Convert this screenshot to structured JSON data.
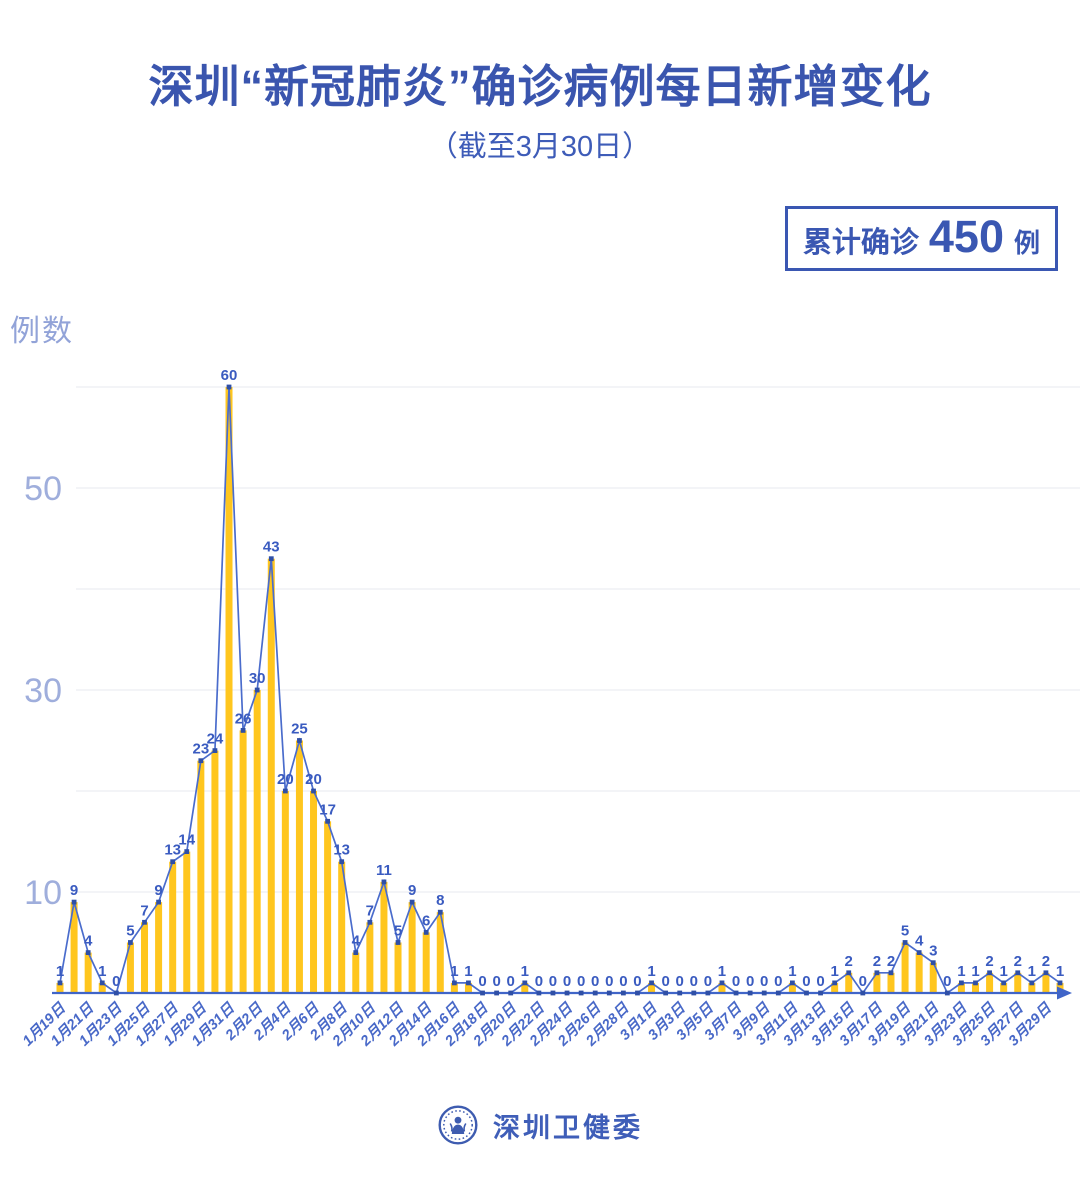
{
  "header": {
    "title": "深圳“新冠肺炎”确诊病例每日新增变化",
    "subtitle": "（截至3月30日）"
  },
  "summary_badge": {
    "prefix": "累计确诊",
    "value": "450",
    "unit": "例"
  },
  "footer": {
    "org_name": "深圳卫健委",
    "logo_icon": "shenzhen-health-commission-emblem"
  },
  "colors": {
    "title_blue": "#3A55AE",
    "badge_blue": "#3A57B2",
    "bar": "#FFC61E",
    "line": "#4A6CCC",
    "marker": "#2F4FA6",
    "value_label": "#3A5BC0",
    "date_label": "#4969C8",
    "axis": "#4065C8",
    "axis_tick": "#9FAEDC",
    "gridline": "#ECEDF2",
    "y_title": "#92A3D8"
  },
  "chart_data": {
    "type": "bar",
    "line_overlay": true,
    "point_labels_shown": true,
    "title": "深圳“新冠肺炎”确诊病例每日新增变化（截至3月30日）",
    "xlabel": "",
    "ylabel": "例数",
    "ylim": [
      0,
      60
    ],
    "grid_step": 10,
    "y_ticks": [
      10,
      30,
      50
    ],
    "x_tick_every": 2,
    "x_tick_labels": [
      "1月19日",
      "1月21日",
      "1月23日",
      "1月25日",
      "1月27日",
      "1月29日",
      "1月31日",
      "2月2日",
      "2月4日",
      "2月6日",
      "2月8日",
      "2月10日",
      "2月12日",
      "2月14日",
      "2月16日",
      "2月18日",
      "2月20日",
      "2月22日",
      "2月24日",
      "2月26日",
      "2月28日",
      "3月1日",
      "3月3日",
      "3月5日",
      "3月7日",
      "3月9日",
      "3月11日",
      "3月13日",
      "3月15日",
      "3月17日",
      "3月19日",
      "3月21日",
      "3月23日",
      "3月25日",
      "3月27日",
      "3月29日"
    ],
    "values": [
      1,
      9,
      4,
      1,
      0,
      5,
      7,
      9,
      13,
      14,
      23,
      24,
      60,
      26,
      30,
      43,
      20,
      25,
      20,
      17,
      13,
      4,
      7,
      11,
      5,
      9,
      6,
      8,
      1,
      1,
      0,
      0,
      0,
      1,
      0,
      0,
      0,
      0,
      0,
      0,
      0,
      0,
      1,
      0,
      0,
      0,
      0,
      1,
      0,
      0,
      0,
      0,
      1,
      0,
      0,
      1,
      2,
      0,
      2,
      2,
      5,
      4,
      3,
      0,
      1,
      1,
      2,
      1,
      2,
      1,
      2,
      1
    ],
    "cumulative_total": 450
  }
}
